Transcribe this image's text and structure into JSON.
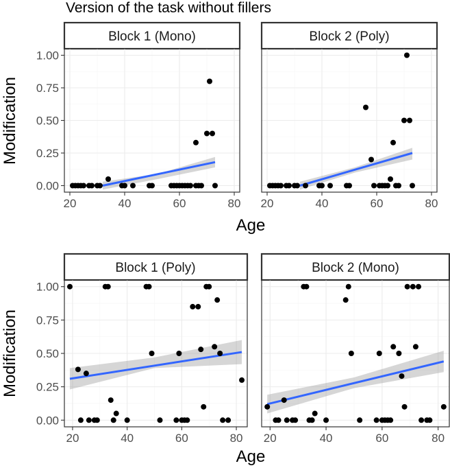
{
  "figure_title": "Version of the task without fillers",
  "colors": {
    "fit_line": "#3366ff",
    "ci_band": "#999999",
    "points": "#000000",
    "grid": "#ebebeb"
  },
  "chart_data": [
    {
      "type": "scatter",
      "panel": "Block 1 (Mono)",
      "xlabel": "Age",
      "ylabel": "Modification",
      "xlim": [
        18,
        82
      ],
      "ylim": [
        -0.05,
        1.05
      ],
      "x_ticks": [
        20,
        40,
        60,
        80
      ],
      "y_ticks": [
        0.0,
        0.25,
        0.5,
        0.75,
        1.0
      ],
      "x_tick_labels": [
        "20",
        "40",
        "60",
        "80"
      ],
      "y_tick_labels": [
        "0.00",
        "0.25",
        "0.50",
        "0.75",
        "1.00"
      ],
      "points": [
        [
          21,
          0
        ],
        [
          22,
          0
        ],
        [
          23,
          0
        ],
        [
          24,
          0
        ],
        [
          25,
          0
        ],
        [
          27,
          0
        ],
        [
          28,
          0
        ],
        [
          30,
          0
        ],
        [
          31,
          0
        ],
        [
          34,
          0.05
        ],
        [
          39,
          0
        ],
        [
          40,
          0
        ],
        [
          43,
          0
        ],
        [
          49,
          0
        ],
        [
          50,
          0
        ],
        [
          57,
          0
        ],
        [
          58,
          0
        ],
        [
          59,
          0
        ],
        [
          60,
          0
        ],
        [
          61,
          0
        ],
        [
          62,
          0
        ],
        [
          63,
          0
        ],
        [
          64,
          0
        ],
        [
          66,
          0
        ],
        [
          67,
          0
        ],
        [
          68,
          0
        ],
        [
          66,
          0.33
        ],
        [
          70,
          0.4
        ],
        [
          71,
          0.8
        ],
        [
          72,
          0.4
        ],
        [
          73,
          0
        ]
      ],
      "fit": {
        "x": [
          32,
          73
        ],
        "y": [
          0.0,
          0.18
        ]
      },
      "ci": {
        "x": [
          32,
          52,
          73
        ],
        "upper": [
          0.03,
          0.09,
          0.22
        ],
        "lower": [
          -0.03,
          0.05,
          0.14
        ]
      }
    },
    {
      "type": "scatter",
      "panel": "Block 2 (Poly)",
      "xlabel": "Age",
      "ylabel": "Modification",
      "xlim": [
        18,
        82
      ],
      "ylim": [
        -0.05,
        1.05
      ],
      "x_ticks": [
        20,
        40,
        60,
        80
      ],
      "y_ticks": [
        0.0,
        0.25,
        0.5,
        0.75,
        1.0
      ],
      "x_tick_labels": [
        "20",
        "40",
        "60",
        "80"
      ],
      "y_tick_labels": [
        "0.00",
        "0.25",
        "0.50",
        "0.75",
        "1.00"
      ],
      "points": [
        [
          21,
          0
        ],
        [
          22,
          0
        ],
        [
          23,
          0
        ],
        [
          24,
          0
        ],
        [
          25,
          0
        ],
        [
          27,
          0
        ],
        [
          28,
          0
        ],
        [
          30,
          0
        ],
        [
          31,
          0
        ],
        [
          34,
          0
        ],
        [
          39,
          0
        ],
        [
          40,
          0
        ],
        [
          43,
          0
        ],
        [
          49,
          0
        ],
        [
          50,
          0
        ],
        [
          56,
          0.6
        ],
        [
          58,
          0.2
        ],
        [
          59,
          0
        ],
        [
          61,
          0
        ],
        [
          62,
          0
        ],
        [
          63,
          0
        ],
        [
          64,
          0
        ],
        [
          65,
          0.05
        ],
        [
          66,
          0.33
        ],
        [
          67,
          0
        ],
        [
          68,
          0
        ],
        [
          70,
          0.5
        ],
        [
          71,
          1.0
        ],
        [
          72,
          0.5
        ],
        [
          73,
          0
        ]
      ],
      "fit": {
        "x": [
          32,
          73
        ],
        "y": [
          0.0,
          0.25
        ]
      },
      "ci": {
        "x": [
          32,
          52,
          73
        ],
        "upper": [
          0.03,
          0.14,
          0.29
        ],
        "lower": [
          -0.03,
          0.1,
          0.2
        ]
      }
    },
    {
      "type": "scatter",
      "panel": "Block 1 (Poly)",
      "xlabel": "Age",
      "ylabel": "Modification",
      "xlim": [
        17,
        84
      ],
      "ylim": [
        -0.05,
        1.05
      ],
      "x_ticks": [
        20,
        40,
        60,
        80
      ],
      "y_ticks": [
        0.0,
        0.25,
        0.5,
        0.75,
        1.0
      ],
      "x_tick_labels": [
        "20",
        "40",
        "60",
        "80"
      ],
      "y_tick_labels": [
        "0.00",
        "0.25",
        "0.50",
        "0.75",
        "1.00"
      ],
      "points": [
        [
          19,
          1.0
        ],
        [
          22,
          0.38
        ],
        [
          23,
          0
        ],
        [
          25,
          0.35
        ],
        [
          26,
          0
        ],
        [
          28,
          0
        ],
        [
          29,
          0
        ],
        [
          32,
          1.0
        ],
        [
          33,
          1.0
        ],
        [
          34,
          0.15
        ],
        [
          35,
          0
        ],
        [
          36,
          0.05
        ],
        [
          40,
          0
        ],
        [
          47,
          1.0
        ],
        [
          48,
          1.0
        ],
        [
          49,
          0.5
        ],
        [
          52,
          0
        ],
        [
          58,
          0
        ],
        [
          59,
          0.5
        ],
        [
          60,
          0
        ],
        [
          61,
          0
        ],
        [
          62,
          0
        ],
        [
          64,
          0.85
        ],
        [
          66,
          0.85
        ],
        [
          67,
          0.53
        ],
        [
          68,
          0.1
        ],
        [
          69,
          1.0
        ],
        [
          70,
          1.0
        ],
        [
          72,
          0.55
        ],
        [
          73,
          0.9
        ],
        [
          74,
          0.5
        ],
        [
          75,
          0
        ],
        [
          77,
          0
        ],
        [
          82,
          0.3
        ]
      ],
      "fit": {
        "x": [
          19,
          82
        ],
        "y": [
          0.31,
          0.51
        ]
      },
      "ci": {
        "x": [
          19,
          50,
          82
        ],
        "upper": [
          0.39,
          0.47,
          0.6
        ],
        "lower": [
          0.23,
          0.39,
          0.42
        ]
      }
    },
    {
      "type": "scatter",
      "panel": "Block 2 (Mono)",
      "xlabel": "Age",
      "ylabel": "Modification",
      "xlim": [
        17,
        84
      ],
      "ylim": [
        -0.05,
        1.05
      ],
      "x_ticks": [
        20,
        40,
        60,
        80
      ],
      "y_ticks": [
        0.0,
        0.25,
        0.5,
        0.75,
        1.0
      ],
      "x_tick_labels": [
        "20",
        "40",
        "60",
        "80"
      ],
      "y_tick_labels": [
        "0.00",
        "0.25",
        "0.50",
        "0.75",
        "1.00"
      ],
      "points": [
        [
          19,
          0.1
        ],
        [
          22,
          0
        ],
        [
          23,
          0
        ],
        [
          25,
          0.15
        ],
        [
          26,
          0
        ],
        [
          28,
          0
        ],
        [
          29,
          0
        ],
        [
          32,
          1.0
        ],
        [
          33,
          1.0
        ],
        [
          34,
          0
        ],
        [
          35,
          0
        ],
        [
          36,
          0.05
        ],
        [
          40,
          0
        ],
        [
          47,
          0.9
        ],
        [
          48,
          1.0
        ],
        [
          49,
          0.5
        ],
        [
          52,
          0
        ],
        [
          58,
          0
        ],
        [
          59,
          0.5
        ],
        [
          60,
          0
        ],
        [
          61,
          0
        ],
        [
          62,
          0
        ],
        [
          63,
          0
        ],
        [
          64,
          0.55
        ],
        [
          66,
          0.5
        ],
        [
          67,
          0.33
        ],
        [
          68,
          0.1
        ],
        [
          69,
          1.0
        ],
        [
          71,
          1.0
        ],
        [
          72,
          0.55
        ],
        [
          73,
          1.0
        ],
        [
          74,
          0
        ],
        [
          76,
          0
        ],
        [
          77,
          0
        ],
        [
          82,
          0.1
        ]
      ],
      "fit": {
        "x": [
          19,
          82
        ],
        "y": [
          0.12,
          0.44
        ]
      },
      "ci": {
        "x": [
          19,
          50,
          82
        ],
        "upper": [
          0.19,
          0.32,
          0.52
        ],
        "lower": [
          0.05,
          0.24,
          0.36
        ]
      }
    }
  ]
}
